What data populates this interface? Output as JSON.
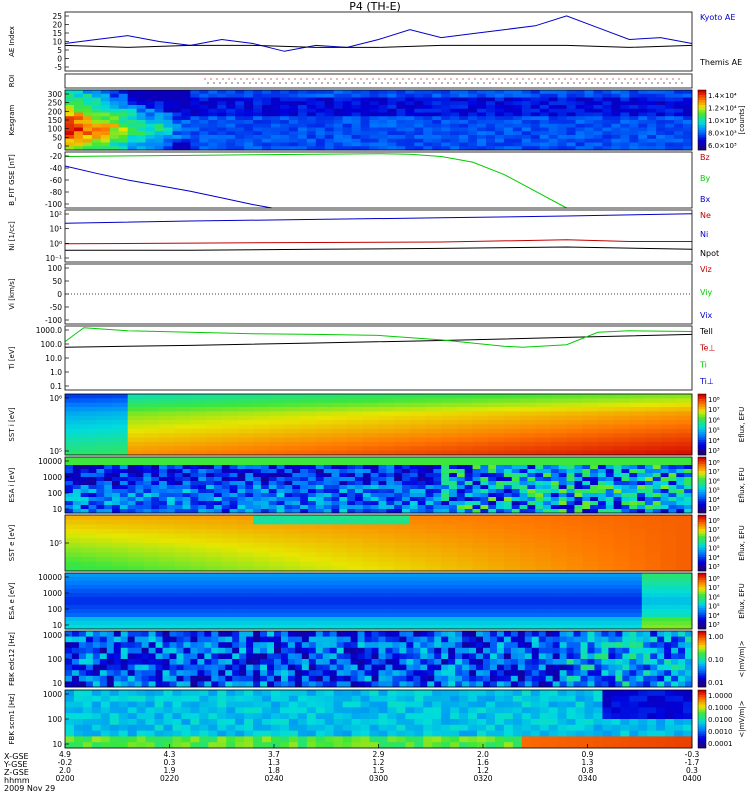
{
  "title": "P4 (TH-E)",
  "date_label": "2009 Nov 29",
  "footer_row_labels": [
    "X-GSE",
    "Y-GSE",
    "Z-GSE",
    "hhmm"
  ],
  "time_ticks": [
    "0200",
    "0220",
    "0240",
    "0300",
    "0320",
    "0340",
    "0400"
  ],
  "x_gse": [
    "4.9",
    "4.3",
    "3.7",
    "2.9",
    "2.0",
    "0.9",
    "-0.3"
  ],
  "y_gse": [
    "-0.2",
    "0.3",
    "1.3",
    "1.2",
    "1.6",
    "1.3",
    "-1.7"
  ],
  "z_gse": [
    "2.0",
    "1.9",
    "1.8",
    "1.5",
    "1.2",
    "0.8",
    "0.3"
  ],
  "colors": {
    "blue": "#0000c8",
    "black": "#000000",
    "red": "#c00000",
    "green": "#00cc00"
  },
  "chart_data": [
    {
      "type": "line",
      "ylabel": "AE Index",
      "ylim": [
        -5,
        25
      ],
      "yticks": [
        "25",
        "20",
        "15",
        "10",
        "5",
        "0",
        "-5"
      ],
      "series": [
        {
          "name": "Kyoto AE",
          "color": "#0000c8",
          "x": [
            0,
            0.05,
            0.1,
            0.15,
            0.2,
            0.25,
            0.3,
            0.35,
            0.4,
            0.45,
            0.5,
            0.55,
            0.6,
            0.65,
            0.7,
            0.75,
            0.8,
            0.85,
            0.9,
            0.95,
            1
          ],
          "values": [
            9,
            11,
            13,
            10,
            8,
            11,
            9,
            5,
            8,
            7,
            11,
            16,
            12,
            14,
            16,
            18,
            23,
            17,
            11,
            12,
            9
          ]
        },
        {
          "name": "Themis AE",
          "color": "#000000",
          "x": [
            0,
            0.1,
            0.2,
            0.3,
            0.4,
            0.5,
            0.6,
            0.7,
            0.8,
            0.9,
            1
          ],
          "values": [
            8,
            7,
            8,
            8,
            7,
            7,
            8,
            8,
            8,
            7,
            8
          ]
        }
      ]
    },
    {
      "type": "table",
      "ylabel": "ROI"
    },
    {
      "type": "heatmap",
      "ylabel": "Kesgram",
      "ylim": [
        0,
        300
      ],
      "yticks": [
        "300",
        "250",
        "200",
        "150",
        "100",
        "50",
        "0"
      ],
      "colorbar_label": "[counts]",
      "colorbar_ticks": [
        "1.4×10⁴",
        "1.2×10⁴",
        "1.0×10⁴",
        "8.0×10³",
        "6.0×10³"
      ]
    },
    {
      "type": "line",
      "ylabel": "B_FIT GSE [nT]",
      "ylim": [
        -100,
        0
      ],
      "yticks": [
        "-20",
        "-40",
        "-60",
        "-80",
        "-100"
      ],
      "series": [
        {
          "name": "Bz",
          "color": "#c00000",
          "x": [],
          "values": []
        },
        {
          "name": "By",
          "color": "#00cc00",
          "x": [
            0,
            0.1,
            0.2,
            0.3,
            0.4,
            0.5,
            0.55,
            0.6,
            0.65,
            0.7,
            0.75,
            0.8
          ],
          "values": [
            -8,
            -7,
            -6,
            -5,
            -4,
            -3,
            -4,
            -8,
            -18,
            -40,
            -70,
            -100
          ]
        },
        {
          "name": "Bx",
          "color": "#0000c8",
          "x": [
            0,
            0.05,
            0.1,
            0.15,
            0.2,
            0.25,
            0.3,
            0.33
          ],
          "values": [
            -25,
            -38,
            -50,
            -60,
            -70,
            -82,
            -94,
            -100
          ]
        }
      ]
    },
    {
      "type": "line",
      "ylabel": "Ni [1/cc]",
      "yticks": [
        "10²",
        "10¹",
        "10⁰",
        "10⁻¹"
      ],
      "series": [
        {
          "name": "Ne",
          "color": "#c00000",
          "x": [
            0,
            0.2,
            0.4,
            0.6,
            0.8,
            0.85,
            0.9,
            1
          ],
          "values": [
            0.8,
            0.9,
            1.0,
            1.1,
            1.6,
            1.4,
            1.2,
            1.2
          ]
        },
        {
          "name": "Ni",
          "color": "#0000c8",
          "x": [
            0,
            0.2,
            0.4,
            0.6,
            0.8,
            1
          ],
          "values": [
            30,
            45,
            60,
            80,
            110,
            160
          ]
        },
        {
          "name": "Npot",
          "color": "#000000",
          "x": [
            0,
            0.2,
            0.4,
            0.6,
            0.8,
            1
          ],
          "values": [
            0.25,
            0.25,
            0.3,
            0.35,
            0.45,
            0.3
          ]
        }
      ]
    },
    {
      "type": "line",
      "ylabel": "Vi [km/s]",
      "yticks": [
        "100",
        "50",
        "0",
        "-50",
        "-100"
      ],
      "series": [
        {
          "name": "Viz",
          "color": "#c00000",
          "x": [],
          "values": []
        },
        {
          "name": "Viy",
          "color": "#00cc00",
          "x": [],
          "values": []
        },
        {
          "name": "Vix",
          "color": "#0000c8",
          "x": [],
          "values": []
        }
      ]
    },
    {
      "type": "line",
      "ylabel": "Ti [eV]",
      "yticks": [
        "1000.0",
        "100.0",
        "10.0",
        "1.0",
        "0.1"
      ],
      "series": [
        {
          "name": "Tell",
          "color": "#000000",
          "x": [
            0,
            0.2,
            0.4,
            0.6,
            0.8,
            1
          ],
          "values": [
            60,
            80,
            120,
            180,
            300,
            500
          ]
        },
        {
          "name": "Te⊥",
          "color": "#c00000",
          "x": [],
          "values": []
        },
        {
          "name": "Ti",
          "color": "#00cc00",
          "x": [
            0,
            0.03,
            0.1,
            0.2,
            0.3,
            0.4,
            0.5,
            0.6,
            0.7,
            0.73,
            0.8,
            0.85,
            0.9,
            1
          ],
          "values": [
            150,
            1500,
            900,
            700,
            550,
            500,
            420,
            200,
            70,
            60,
            90,
            700,
            900,
            800
          ]
        },
        {
          "name": "Ti⊥",
          "color": "#0000c8",
          "x": [],
          "values": []
        }
      ]
    },
    {
      "type": "heatmap",
      "ylabel": "SST i [eV]",
      "yticks": [
        "10⁶",
        "10⁵"
      ],
      "colorbar_label": "Eflux, EFU",
      "colorbar_ticks": [
        "10⁸",
        "10⁷",
        "10⁶",
        "10⁵",
        "10⁴",
        "10³"
      ]
    },
    {
      "type": "heatmap",
      "ylabel": "ESA i [eV]",
      "yticks": [
        "10000",
        "1000",
        "100",
        "10"
      ],
      "colorbar_label": "Eflux, EFU",
      "colorbar_ticks": [
        "10⁸",
        "10⁷",
        "10⁶",
        "10⁵",
        "10⁴",
        "10³"
      ]
    },
    {
      "type": "heatmap",
      "ylabel": "SST e [eV]",
      "yticks": [
        "10⁵"
      ],
      "colorbar_label": "Eflux, EFU",
      "colorbar_ticks": [
        "10⁸",
        "10⁷",
        "10⁶",
        "10⁵",
        "10⁴",
        "10³"
      ]
    },
    {
      "type": "heatmap",
      "ylabel": "ESA e [eV]",
      "yticks": [
        "10000",
        "1000",
        "100",
        "10"
      ],
      "colorbar_label": "Eflux, EFU",
      "colorbar_ticks": [
        "10⁸",
        "10⁷",
        "10⁶",
        "10⁵",
        "10⁴",
        "10³"
      ]
    },
    {
      "type": "heatmap",
      "ylabel": "FBK edc12 [Hz]",
      "yticks": [
        "1000",
        "100",
        "10"
      ],
      "colorbar_label": "<|mV/m|>",
      "colorbar_ticks": [
        "1.00",
        "0.10",
        "0.01"
      ]
    },
    {
      "type": "heatmap",
      "ylabel": "FBK scm1 [Hz]",
      "yticks": [
        "1000",
        "100",
        "10"
      ],
      "colorbar_label": "<|mV/m|>",
      "colorbar_ticks": [
        "1.0000",
        "0.1000",
        "0.0100",
        "0.0010",
        "0.0001"
      ]
    }
  ]
}
